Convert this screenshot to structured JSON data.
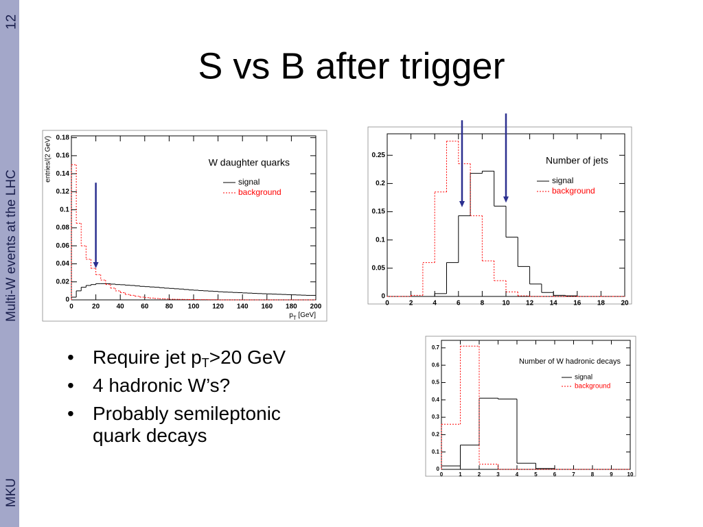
{
  "sidebar": {
    "page": "12",
    "topic": "Multi-W events at the LHC",
    "author": "MKU"
  },
  "title": "S vs B after trigger",
  "bullets": [
    [
      {
        "text": "Require jet p"
      },
      {
        "sub": "T"
      },
      {
        "text": ">20 GeV"
      }
    ],
    [
      {
        "text": "4 hadronic W’s?"
      }
    ],
    [
      {
        "text": "Probably semileptonic quark decays"
      }
    ]
  ],
  "chart_data": [
    {
      "type": "histogram",
      "legend_title": "W daughter quarks",
      "xlabel": [
        {
          "text": "p"
        },
        {
          "sub": "T"
        },
        {
          "text": " [GeV]"
        }
      ],
      "ylabel": "entries/(2 GeV)",
      "bins": [
        0,
        4,
        8,
        12,
        16,
        20,
        24,
        28,
        32,
        36,
        40,
        44,
        48,
        52,
        56,
        60,
        64,
        68,
        72,
        76,
        80,
        84,
        88,
        92,
        96,
        100,
        104,
        108,
        112,
        116,
        120,
        124,
        128,
        132,
        136,
        140,
        144,
        148,
        152,
        156,
        160,
        164,
        168,
        172,
        176,
        180,
        184,
        188,
        192,
        196,
        200
      ],
      "series": [
        {
          "name": "signal",
          "color": "#000000",
          "dashed": false,
          "values": [
            0.003,
            0.01,
            0.014,
            0.016,
            0.017,
            0.018,
            0.018,
            0.018,
            0.0175,
            0.017,
            0.0168,
            0.0163,
            0.016,
            0.0155,
            0.015,
            0.0147,
            0.0143,
            0.014,
            0.0135,
            0.013,
            0.0127,
            0.0123,
            0.012,
            0.0115,
            0.011,
            0.0107,
            0.0103,
            0.01,
            0.0097,
            0.0094,
            0.009,
            0.0087,
            0.0085,
            0.0082,
            0.008,
            0.0077,
            0.0075,
            0.0072,
            0.007,
            0.0068,
            0.0066,
            0.0064,
            0.0062,
            0.006,
            0.0058,
            0.0056,
            0.0054,
            0.0052,
            0.005,
            0.005
          ]
        },
        {
          "name": "background",
          "color": "#ff0000",
          "dashed": true,
          "values": [
            0.15,
            0.085,
            0.06,
            0.045,
            0.035,
            0.028,
            0.022,
            0.017,
            0.013,
            0.01,
            0.008,
            0.006,
            0.005,
            0.004,
            0.003,
            0.0025,
            0.002,
            0.0015,
            0.0012,
            0.001,
            0.0008,
            0.0007,
            0.0006,
            0.0005,
            0.0004,
            0.0004,
            0.0003,
            0.0003,
            0.0002,
            0.0002,
            0,
            0,
            0,
            0,
            0,
            0,
            0,
            0,
            0,
            0,
            0,
            0,
            0,
            0,
            0,
            0,
            0,
            0,
            0,
            0
          ]
        }
      ],
      "xlim": [
        0,
        200
      ],
      "xticks": [
        0,
        20,
        40,
        60,
        80,
        100,
        120,
        140,
        160,
        180,
        200
      ],
      "ylim": [
        0,
        0.182
      ],
      "yticks": [
        0,
        0.02,
        0.04,
        0.06,
        0.08,
        0.1,
        0.12,
        0.14,
        0.16,
        0.18
      ],
      "arrow_color": "#2b2f8f",
      "arrows": [
        {
          "x": 20,
          "y_from": 0.13,
          "y_to": 0.035
        }
      ]
    },
    {
      "type": "histogram",
      "legend_title": "Number of jets",
      "bins": [
        0,
        1,
        2,
        3,
        4,
        5,
        6,
        7,
        8,
        9,
        10,
        11,
        12,
        13,
        14,
        15,
        16,
        17,
        18,
        19,
        20
      ],
      "series": [
        {
          "name": "signal",
          "color": "#000000",
          "dashed": false,
          "values": [
            0,
            0,
            0,
            0,
            0.005,
            0.06,
            0.143,
            0.218,
            0.222,
            0.16,
            0.105,
            0.053,
            0.022,
            0.007,
            0.002,
            0.001,
            0,
            0,
            0,
            0
          ]
        },
        {
          "name": "background",
          "color": "#ff0000",
          "dashed": true,
          "values": [
            0,
            0,
            0.002,
            0.06,
            0.185,
            0.275,
            0.235,
            0.143,
            0.063,
            0.028,
            0.008,
            0.001,
            0,
            0,
            0,
            0,
            0,
            0,
            0,
            0
          ]
        }
      ],
      "xlim": [
        0,
        20
      ],
      "xticks": [
        0,
        2,
        4,
        6,
        8,
        10,
        12,
        14,
        16,
        18,
        20
      ],
      "ylim": [
        0,
        0.288
      ],
      "yticks": [
        0,
        0.05,
        0.1,
        0.15,
        0.2,
        0.25
      ],
      "arrow_color": "#2b2f8f",
      "arrows": [
        {
          "x": 6.3,
          "y_from": 0.312,
          "y_to": 0.158
        },
        {
          "x": 10,
          "y_from": 0.324,
          "y_to": 0.166
        }
      ]
    },
    {
      "type": "histogram",
      "legend_title": "Number of W hadronic decays",
      "bins": [
        0,
        1,
        2,
        3,
        4,
        5,
        6,
        7,
        8,
        9,
        10
      ],
      "series": [
        {
          "name": "signal",
          "color": "#000000",
          "dashed": false,
          "values": [
            0.02,
            0.14,
            0.41,
            0.405,
            0.035,
            0.005,
            0,
            0,
            0,
            0
          ]
        },
        {
          "name": "background",
          "color": "#ff0000",
          "dashed": true,
          "values": [
            0.26,
            0.71,
            0.03,
            0,
            0,
            0,
            0,
            0,
            0,
            0
          ]
        }
      ],
      "xlim": [
        0,
        10
      ],
      "xticks": [
        0,
        1,
        2,
        3,
        4,
        5,
        6,
        7,
        8,
        9,
        10
      ],
      "ylim": [
        0,
        0.743
      ],
      "yticks": [
        0,
        0.1,
        0.2,
        0.3,
        0.4,
        0.5,
        0.6,
        0.7
      ]
    }
  ]
}
